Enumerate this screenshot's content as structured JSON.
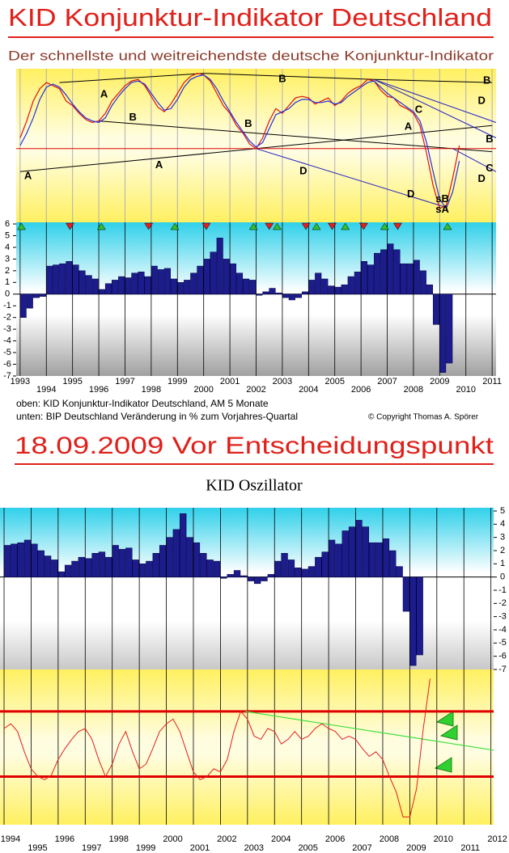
{
  "headline": "18.09.2009  Vor Entscheidungspunkt",
  "footer_notes": [
    "oben: KID Konjunktur-Indikator Deutschland, AM 5 Monate",
    "unten: BIP Deutschland Veränderung in % zum Vorjahres-Quartal"
  ],
  "copyright": "© Copyright Thomas A. Spörer",
  "chart_data": [
    {
      "type": "line",
      "title": "KID Konjunktur-Indikator Deutschland",
      "subtitle": "Der schnellste und weitreichendste deutsche Konjunktur-Indikator",
      "x": [
        1993,
        1993.25,
        1993.5,
        1993.75,
        1994,
        1994.25,
        1994.5,
        1994.75,
        1995,
        1995.25,
        1995.5,
        1995.75,
        1996,
        1996.25,
        1996.5,
        1996.75,
        1997,
        1997.25,
        1997.5,
        1997.75,
        1998,
        1998.25,
        1998.5,
        1998.75,
        1999,
        1999.25,
        1999.5,
        1999.75,
        2000,
        2000.25,
        2000.5,
        2000.75,
        2001,
        2001.25,
        2001.5,
        2001.75,
        2002,
        2002.25,
        2002.5,
        2002.75,
        2003,
        2003.25,
        2003.5,
        2003.75,
        2004,
        2004.25,
        2004.5,
        2004.75,
        2005,
        2005.25,
        2005.5,
        2005.75,
        2006,
        2006.25,
        2006.5,
        2006.75,
        2007,
        2007.25,
        2007.5,
        2007.75,
        2008,
        2008.25,
        2008.5,
        2008.75,
        2009,
        2009.25,
        2009.5,
        2009.75
      ],
      "series": [
        {
          "color": "#e01010",
          "values": [
            55,
            66,
            79,
            87,
            91,
            89,
            87,
            79,
            76,
            71,
            67,
            65,
            66,
            71,
            79,
            84,
            89,
            92,
            93,
            89,
            82,
            75,
            72,
            77,
            84,
            91,
            95,
            97,
            96,
            92,
            84,
            76,
            71,
            63,
            58,
            51,
            48,
            55,
            66,
            74,
            71,
            76,
            81,
            82,
            81,
            77,
            79,
            81,
            76,
            79,
            84,
            87,
            89,
            93,
            92,
            86,
            82,
            81,
            76,
            74,
            71,
            63,
            45,
            24,
            9,
            11,
            29,
            50
          ]
        },
        {
          "color": "#2030e0",
          "values": [
            50,
            58,
            68,
            80,
            88,
            90,
            88,
            83,
            77,
            72,
            68,
            66,
            65,
            68,
            76,
            82,
            87,
            91,
            92,
            90,
            84,
            78,
            73,
            74,
            80,
            88,
            93,
            95,
            96,
            93,
            87,
            79,
            72,
            65,
            59,
            53,
            49,
            52,
            61,
            70,
            72,
            74,
            78,
            80,
            80,
            78,
            78,
            79,
            77,
            78,
            82,
            85,
            88,
            91,
            92,
            88,
            84,
            81,
            78,
            75,
            72,
            66,
            52,
            33,
            15,
            9,
            20,
            40
          ]
        }
      ],
      "trendlines": [
        {
          "x": [
            1993,
            2011
          ],
          "y": [
            33,
            63
          ],
          "color": "#000000"
        },
        {
          "x": [
            1996,
            2011
          ],
          "y": [
            66,
            46
          ],
          "color": "#000000"
        },
        {
          "x": [
            1994.5,
            2000,
            2006.5,
            2011
          ],
          "y": [
            91,
            97,
            93,
            91
          ],
          "color": "#000000"
        },
        {
          "x": [
            1992.85,
            2011.15
          ],
          "y": [
            48,
            48
          ],
          "color": "#e00000"
        },
        {
          "x": [
            2002,
            2009.2
          ],
          "y": [
            48,
            10
          ],
          "color": "#2020c0"
        },
        {
          "x": [
            2006.5,
            2011.15
          ],
          "y": [
            93,
            65
          ],
          "color": "#2020c0"
        },
        {
          "x": [
            2006.5,
            2011.15
          ],
          "y": [
            93,
            55
          ],
          "color": "#2020c0"
        },
        {
          "x": [
            2009.5,
            2011.15
          ],
          "y": [
            48,
            33
          ],
          "color": "#2020c0"
        }
      ],
      "annotations": [
        {
          "text": "A",
          "x": 1993.3,
          "y": 30
        },
        {
          "text": "A",
          "x": 1996.2,
          "y": 83
        },
        {
          "text": "A",
          "x": 1998.3,
          "y": 37
        },
        {
          "text": "A",
          "x": 2007.8,
          "y": 62
        },
        {
          "text": "B",
          "x": 1997.3,
          "y": 68
        },
        {
          "text": "B",
          "x": 2001.7,
          "y": 64
        },
        {
          "text": "B",
          "x": 2003.0,
          "y": 93
        },
        {
          "text": "B",
          "x": 2010.8,
          "y": 92
        },
        {
          "text": "B",
          "x": 2010.9,
          "y": 54
        },
        {
          "text": "C",
          "x": 2008.2,
          "y": 73
        },
        {
          "text": "C",
          "x": 2010.9,
          "y": 35
        },
        {
          "text": "D",
          "x": 2003.8,
          "y": 33
        },
        {
          "text": "D",
          "x": 2007.9,
          "y": 18
        },
        {
          "text": "D",
          "x": 2010.6,
          "y": 79
        },
        {
          "text": "D",
          "x": 2010.6,
          "y": 28
        },
        {
          "text": "sB",
          "x": 2009.1,
          "y": 15
        },
        {
          "text": "sA",
          "x": 2009.1,
          "y": 8
        }
      ],
      "xlim": [
        1992.85,
        2011.15
      ],
      "ylim": [
        0,
        100
      ]
    },
    {
      "type": "bar",
      "color": "#1c1c8c",
      "x": [
        1993,
        1993.25,
        1993.5,
        1993.75,
        1994,
        1994.25,
        1994.5,
        1994.75,
        1995,
        1995.25,
        1995.5,
        1995.75,
        1996,
        1996.25,
        1996.5,
        1996.75,
        1997,
        1997.25,
        1997.5,
        1997.75,
        1998,
        1998.25,
        1998.5,
        1998.75,
        1999,
        1999.25,
        1999.5,
        1999.75,
        2000,
        2000.25,
        2000.5,
        2000.75,
        2001,
        2001.25,
        2001.5,
        2001.75,
        2002,
        2002.25,
        2002.5,
        2002.75,
        2003,
        2003.25,
        2003.5,
        2003.75,
        2004,
        2004.25,
        2004.5,
        2004.75,
        2005,
        2005.25,
        2005.5,
        2005.75,
        2006,
        2006.25,
        2006.5,
        2006.75,
        2007,
        2007.25,
        2007.5,
        2007.75,
        2008,
        2008.25,
        2008.5,
        2008.75,
        2009,
        2009.25
      ],
      "values": [
        -2.0,
        -1.2,
        -0.3,
        -0.2,
        2.4,
        2.5,
        2.6,
        2.8,
        2.5,
        2.0,
        1.6,
        1.3,
        0.4,
        0.9,
        1.2,
        1.5,
        1.4,
        1.8,
        1.9,
        1.5,
        2.4,
        2.1,
        2.2,
        1.3,
        1.0,
        1.2,
        1.8,
        2.4,
        3.0,
        3.6,
        4.8,
        3.0,
        2.6,
        1.8,
        1.3,
        1.2,
        -0.1,
        0.2,
        0.5,
        0.1,
        -0.3,
        -0.5,
        -0.3,
        0.2,
        1.2,
        1.8,
        1.3,
        0.7,
        0.6,
        0.8,
        1.5,
        1.9,
        2.8,
        2.5,
        3.5,
        3.8,
        4.3,
        3.8,
        2.6,
        2.6,
        2.9,
        2.0,
        0.8,
        -2.6,
        -6.7,
        -5.9
      ],
      "signals": {
        "x": [
          1993.05,
          1994.9,
          1996.1,
          1997.9,
          1998.9,
          2000.1,
          2001.9,
          2002.5,
          2002.8,
          2003.9,
          2004.3,
          2004.9,
          2005.4,
          2006.1,
          2006.9,
          2007.4,
          2009.3
        ],
        "color": [
          "#30c030",
          "#e02020",
          "#30c030",
          "#e02020",
          "#30c030",
          "#e02020",
          "#30c030",
          "#e02020",
          "#30c030",
          "#e02020",
          "#30c030",
          "#e02020",
          "#30c030",
          "#e02020",
          "#30c030",
          "#e02020",
          "#30c030"
        ]
      },
      "xlim": [
        1992.85,
        2011.15
      ],
      "xticks": [
        1993,
        1994,
        1995,
        1996,
        1997,
        1998,
        1999,
        2000,
        2001,
        2002,
        2003,
        2004,
        2005,
        2006,
        2007,
        2008,
        2009,
        2010,
        2011
      ],
      "ylim": [
        -7,
        6
      ],
      "yticks": [
        6,
        5,
        4,
        3,
        2,
        1,
        0,
        -1,
        -2,
        -3,
        -4,
        -5,
        -6,
        -7
      ]
    },
    {
      "type": "bar",
      "title": "KID Oszillator",
      "color": "#1c1c8c",
      "x": [
        1994,
        1994.25,
        1994.5,
        1994.75,
        1995,
        1995.25,
        1995.5,
        1995.75,
        1996,
        1996.25,
        1996.5,
        1996.75,
        1997,
        1997.25,
        1997.5,
        1997.75,
        1998,
        1998.25,
        1998.5,
        1998.75,
        1999,
        1999.25,
        1999.5,
        1999.75,
        2000,
        2000.25,
        2000.5,
        2000.75,
        2001,
        2001.25,
        2001.5,
        2001.75,
        2002,
        2002.25,
        2002.5,
        2002.75,
        2003,
        2003.25,
        2003.5,
        2003.75,
        2004,
        2004.25,
        2004.5,
        2004.75,
        2005,
        2005.25,
        2005.5,
        2005.75,
        2006,
        2006.25,
        2006.5,
        2006.75,
        2007,
        2007.25,
        2007.5,
        2007.75,
        2008,
        2008.25,
        2008.5,
        2008.75,
        2009,
        2009.25
      ],
      "values": [
        2.4,
        2.5,
        2.6,
        2.8,
        2.5,
        2.0,
        1.6,
        1.3,
        0.4,
        0.9,
        1.2,
        1.5,
        1.4,
        1.8,
        1.9,
        1.5,
        2.4,
        2.1,
        2.2,
        1.3,
        1.0,
        1.2,
        1.8,
        2.4,
        3.0,
        3.6,
        4.8,
        3.0,
        2.6,
        1.8,
        1.3,
        1.2,
        -0.1,
        0.2,
        0.5,
        0.1,
        -0.3,
        -0.5,
        -0.3,
        0.2,
        1.2,
        1.8,
        1.3,
        0.7,
        0.6,
        0.8,
        1.5,
        1.9,
        2.8,
        2.5,
        3.5,
        3.8,
        4.3,
        3.8,
        2.6,
        2.6,
        2.9,
        2.0,
        0.8,
        -2.6,
        -6.7,
        -5.9
      ],
      "xlim": [
        1993.85,
        2012.1
      ],
      "ylim": [
        -7,
        5
      ],
      "yticks": [
        5,
        4,
        3,
        2,
        1,
        0,
        -1,
        -2,
        -3,
        -4,
        -5,
        -6,
        -7
      ]
    },
    {
      "type": "line",
      "color": "#e02020",
      "x": [
        1994,
        1994.25,
        1994.5,
        1994.75,
        1995,
        1995.25,
        1995.5,
        1995.75,
        1996,
        1996.25,
        1996.5,
        1996.75,
        1997,
        1997.25,
        1997.5,
        1997.75,
        1998,
        1998.25,
        1998.5,
        1998.75,
        1999,
        1999.25,
        1999.5,
        1999.75,
        2000,
        2000.25,
        2000.5,
        2000.75,
        2001,
        2001.25,
        2001.5,
        2001.75,
        2002,
        2002.25,
        2002.5,
        2002.75,
        2003,
        2003.25,
        2003.5,
        2003.75,
        2004,
        2004.25,
        2004.5,
        2004.75,
        2005,
        2005.25,
        2005.5,
        2005.75,
        2006,
        2006.25,
        2006.5,
        2006.75,
        2007,
        2007.25,
        2007.5,
        2007.75,
        2008,
        2008.25,
        2008.5,
        2008.75,
        2009,
        2009.25,
        2009.5,
        2009.75
      ],
      "values": [
        62,
        65,
        60,
        47,
        36,
        31,
        29,
        32,
        42,
        49,
        55,
        60,
        62,
        55,
        42,
        31,
        39,
        52,
        60,
        47,
        36,
        39,
        49,
        60,
        65,
        68,
        60,
        47,
        34,
        29,
        31,
        36,
        34,
        42,
        60,
        73,
        68,
        57,
        55,
        62,
        60,
        52,
        55,
        60,
        55,
        57,
        62,
        65,
        62,
        60,
        55,
        57,
        55,
        49,
        44,
        47,
        42,
        31,
        21,
        5,
        5,
        23,
        62,
        94
      ],
      "hlines": [
        73,
        31
      ],
      "trendline": {
        "x": [
          2002.9,
          2012.1
        ],
        "y": [
          73,
          48
        ],
        "color": "#40e040"
      },
      "xlim": [
        1993.85,
        2012.1
      ],
      "ylim": [
        0,
        100
      ],
      "xticks": [
        1994,
        1995,
        1996,
        1997,
        1998,
        1999,
        2000,
        2001,
        2002,
        2003,
        2004,
        2005,
        2006,
        2007,
        2008,
        2009,
        2010,
        2011,
        2012
      ]
    }
  ]
}
